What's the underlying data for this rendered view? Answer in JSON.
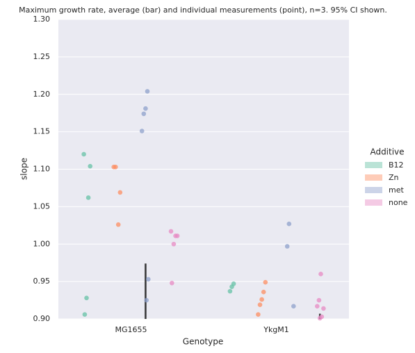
{
  "chart_data": {
    "type": "strip",
    "title": "Maximum growth rate, average (bar) and individual measurements (point), n=3. 95% CI shown.",
    "xlabel": "Genotype",
    "ylabel": "slope",
    "categories": [
      "MG1655",
      "YkgM1"
    ],
    "legend_title": "Additive",
    "legend": "right",
    "ylim": [
      0.9,
      1.3
    ],
    "yticks": [
      {
        "value": 0.9,
        "label": "0.90"
      },
      0.95,
      {
        "value": 1.0,
        "label": "1.00"
      },
      1.05,
      {
        "value": 1.1,
        "label": "1.10"
      },
      1.15,
      {
        "value": 1.2,
        "label": "1.20"
      },
      1.25,
      {
        "value": 1.3,
        "label": "1.30"
      }
    ],
    "grid": true,
    "series": [
      {
        "name": "B12",
        "color": "#66c2a5",
        "values": [
          [
            1.12,
            1.104,
            1.062,
            0.928,
            0.906
          ],
          [
            0.947,
            0.943,
            0.937
          ]
        ],
        "ci_high": [
          null,
          null
        ]
      },
      {
        "name": "Zn",
        "color": "#fc8d62",
        "values": [
          [
            1.103,
            1.103,
            1.069,
            1.026
          ],
          [
            0.949,
            0.936,
            0.926,
            0.919,
            0.906
          ]
        ],
        "ci_high": [
          null,
          null
        ]
      },
      {
        "name": "met",
        "color": "#8da0cb",
        "values": [
          [
            1.204,
            1.181,
            1.174,
            1.151,
            0.953,
            0.925
          ],
          [
            1.027,
            0.997,
            0.917
          ]
        ],
        "ci_high": [
          0.974,
          null
        ]
      },
      {
        "name": "none",
        "color": "#e78ac3",
        "values": [
          [
            1.017,
            1.011,
            1.011,
            1.0,
            0.948
          ],
          [
            0.96,
            0.925,
            0.917,
            0.914,
            0.903,
            0.901
          ]
        ],
        "ci_high": [
          null,
          0.907
        ]
      }
    ]
  }
}
